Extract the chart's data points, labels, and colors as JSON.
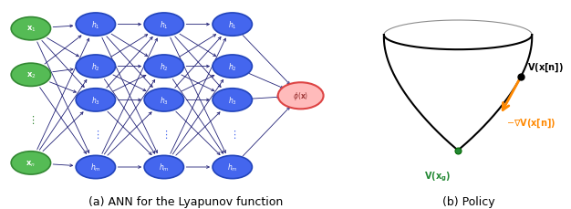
{
  "fig_width": 6.26,
  "fig_height": 2.3,
  "dpi": 100,
  "background": "#ffffff",
  "left_panel": {
    "title": "(a) ANN for the Lyapunov function",
    "title_fontsize": 9,
    "input_color": "#55bb55",
    "input_edge_color": "#338833",
    "hidden_color": "#4466ee",
    "hidden_edge_color": "#2244bb",
    "output_face_color": "#ffbbbb",
    "output_edge_color": "#dd4444",
    "output_text_color": "#993333",
    "arrow_color": "#222277",
    "node_text_color": "#ffffff",
    "dots_color_input": "#338833",
    "dots_color_hidden": "#4466ee"
  },
  "right_panel": {
    "title": "(b) Policy",
    "title_fontsize": 9,
    "bowl_lw": 1.5,
    "bowl_color": "#000000",
    "arrow_color": "#ff8800",
    "arrow_lw": 2.0,
    "point_top_color": "#000000",
    "point_bottom_color": "#228833",
    "point_bottom_edge": "#006600",
    "label_Vxn_color": "#000000",
    "label_gradV_color": "#ff8800",
    "label_Vxg_color": "#228833",
    "label_fontsize": 7
  }
}
